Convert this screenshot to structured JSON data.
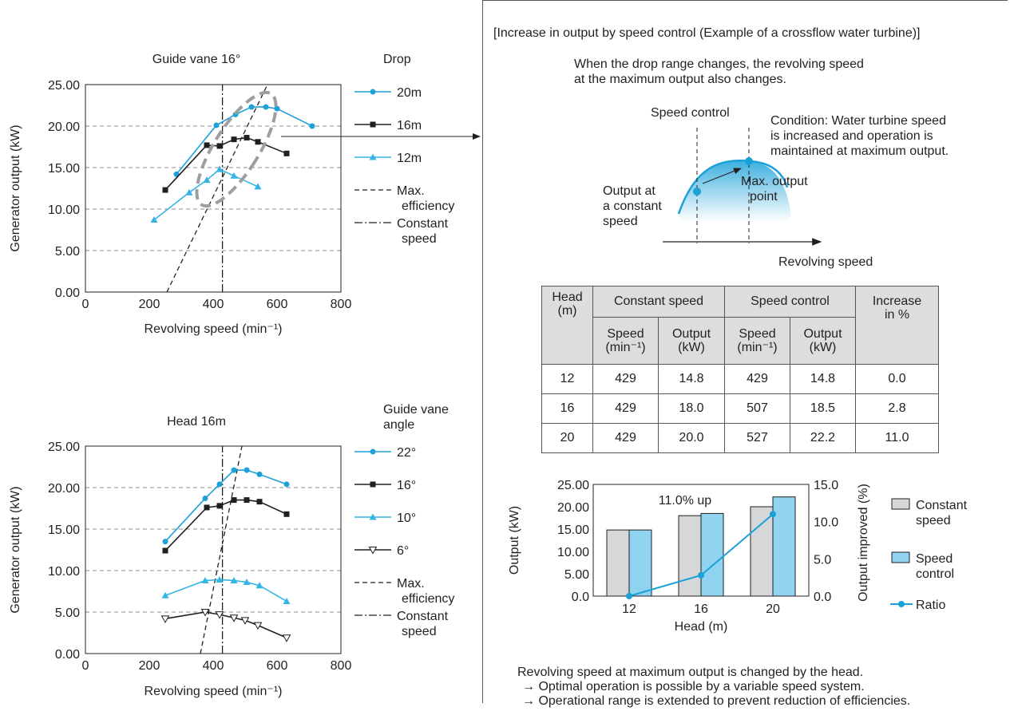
{
  "chart_data": [
    {
      "type": "line",
      "title": "Guide vane 16°",
      "xlabel": "Revolving speed (min⁻¹)",
      "ylabel": "Generator output (kW)",
      "xlim": [
        0,
        800
      ],
      "ylim": [
        0,
        25
      ],
      "xticks": [
        "0",
        "200",
        "400",
        "600",
        "800"
      ],
      "yticks": [
        "0.00",
        "5.00",
        "10.00",
        "15.00",
        "20.00",
        "25.00"
      ],
      "grid": "horizontal dashed",
      "legend_title": "Drop",
      "legend_placement": "right",
      "series": [
        {
          "name": "20m",
          "color": "#1ba1d8",
          "marker": "circle",
          "x": [
            285,
            410,
            470,
            520,
            565,
            600,
            710
          ],
          "y": [
            14.2,
            20.1,
            21.4,
            22.3,
            22.3,
            22.1,
            20.0
          ]
        },
        {
          "name": "16m",
          "color": "#231f20",
          "marker": "square",
          "x": [
            250,
            380,
            420,
            465,
            505,
            540,
            630
          ],
          "y": [
            12.3,
            17.7,
            17.6,
            18.4,
            18.6,
            18.1,
            16.7
          ]
        },
        {
          "name": "12m",
          "color": "#35b5e5",
          "marker": "triangle",
          "x": [
            215,
            325,
            380,
            420,
            465,
            540
          ],
          "y": [
            8.7,
            12.0,
            13.5,
            14.8,
            14.0,
            12.7
          ]
        }
      ],
      "reference_lines": [
        {
          "name": "Max. efficiency",
          "style": "dashed",
          "x": [
            255,
            570
          ],
          "y": [
            0,
            25
          ]
        },
        {
          "name": "Constant speed",
          "style": "dash-dot",
          "x": [
            429,
            429
          ],
          "y": [
            0,
            25
          ]
        }
      ]
    },
    {
      "type": "line",
      "title": "Head 16m",
      "xlabel": "Revolving speed (min⁻¹)",
      "ylabel": "Generator output (kW)",
      "xlim": [
        0,
        800
      ],
      "ylim": [
        0,
        25
      ],
      "xticks": [
        "0",
        "200",
        "400",
        "600",
        "800"
      ],
      "yticks": [
        "0.00",
        "5.00",
        "10.00",
        "15.00",
        "20.00",
        "25.00"
      ],
      "grid": "horizontal dashed",
      "legend_title": "Guide vane angle",
      "legend_placement": "right",
      "series": [
        {
          "name": "22°",
          "color": "#1ba1d8",
          "marker": "circle",
          "x": [
            250,
            375,
            420,
            465,
            505,
            545,
            630
          ],
          "y": [
            13.5,
            18.7,
            20.4,
            22.1,
            22.1,
            21.6,
            20.4
          ]
        },
        {
          "name": "16°",
          "color": "#231f20",
          "marker": "square",
          "x": [
            250,
            380,
            420,
            465,
            505,
            545,
            630
          ],
          "y": [
            12.4,
            17.6,
            17.8,
            18.5,
            18.5,
            18.3,
            16.8
          ]
        },
        {
          "name": "10°",
          "color": "#35b5e5",
          "marker": "triangle",
          "x": [
            250,
            375,
            420,
            465,
            505,
            545,
            630
          ],
          "y": [
            7.0,
            8.8,
            8.9,
            8.8,
            8.6,
            8.2,
            6.3
          ]
        },
        {
          "name": "6°",
          "color": "#231f20",
          "marker": "triangle-down-open",
          "x": [
            250,
            375,
            420,
            465,
            500,
            540,
            630
          ],
          "y": [
            4.2,
            5.0,
            4.7,
            4.3,
            4.0,
            3.4,
            1.9
          ]
        }
      ],
      "reference_lines": [
        {
          "name": "Max. efficiency",
          "style": "dashed",
          "x": [
            360,
            490
          ],
          "y": [
            0,
            25
          ]
        },
        {
          "name": "Constant speed",
          "style": "dash-dot",
          "x": [
            429,
            429
          ],
          "y": [
            0,
            25
          ]
        }
      ]
    },
    {
      "type": "bar",
      "categories": [
        "12",
        "16",
        "20"
      ],
      "xlabel": "Head (m)",
      "ylabel": "Output (kW)",
      "y2label": "Output improved (%)",
      "ylim": [
        0,
        25
      ],
      "y2lim": [
        0,
        15
      ],
      "yticks": [
        "0.0",
        "5.00",
        "10.00",
        "15.00",
        "20.00",
        "25.00"
      ],
      "y2ticks": [
        "0.0",
        "5.0",
        "10.0",
        "15.0"
      ],
      "legend_placement": "right",
      "annotation": "11.0% up",
      "series": [
        {
          "name": "Constant speed",
          "kind": "bar",
          "color": "#d6d7d8",
          "values": [
            14.8,
            18.0,
            20.0
          ]
        },
        {
          "name": "Speed control",
          "kind": "bar",
          "color": "#8fd3f0",
          "values": [
            14.8,
            18.5,
            22.2
          ]
        },
        {
          "name": "Ratio",
          "kind": "line",
          "axis": "right",
          "color": "#1ba1d8",
          "values": [
            0.0,
            2.8,
            11.0
          ]
        }
      ]
    }
  ],
  "panel": {
    "heading": "[Increase in output by speed control (Example of a crossflow water turbine)]",
    "intro_line1": "When the drop range changes, the revolving speed",
    "intro_line2": "at the maximum output also changes.",
    "sketch": {
      "speed_control": "Speed control",
      "condition_line1": "Condition: Water turbine speed",
      "condition_line2": "is increased and operation is",
      "condition_line3": "maintained at maximum output.",
      "const_line1": "Output at",
      "const_line2": "a constant",
      "const_line3": "speed",
      "max_line1": "Max. output",
      "max_line2": "point",
      "xaxis": "Revolving speed"
    },
    "table": {
      "col_head_line1": "Head",
      "col_head_line2": "(m)",
      "group_const": "Constant speed",
      "group_ctrl": "Speed control",
      "col_increase_line1": "Increase",
      "col_increase_line2": "in %",
      "sub_speed_line1": "Speed",
      "sub_speed_line2": "(min⁻¹)",
      "sub_output_line1": "Output",
      "sub_output_line2": "(kW)",
      "rows": [
        [
          "12",
          "429",
          "14.8",
          "429",
          "14.8",
          "0.0"
        ],
        [
          "16",
          "429",
          "18.0",
          "507",
          "18.5",
          "2.8"
        ],
        [
          "20",
          "429",
          "20.0",
          "527",
          "22.2",
          "11.0"
        ]
      ]
    },
    "legend": {
      "const_line1": "Constant",
      "const_line2": "speed",
      "ctrl_line1": "Speed",
      "ctrl_line2": "control",
      "ratio": "Ratio"
    },
    "footer_line1": "Revolving speed at maximum output is changed by the head.",
    "footer_line2": "→ Optimal operation is possible by a variable speed system.",
    "footer_line3": "→ Operational range is extended to prevent reduction of efficiencies."
  },
  "colors": {
    "blue": "#1ba1d8",
    "light_blue": "#35b5e5",
    "bar_blue": "#8fd3f0",
    "bar_gray": "#d6d7d8",
    "table_header": "#dcdddd",
    "ellipse": "#9d9e9f"
  }
}
